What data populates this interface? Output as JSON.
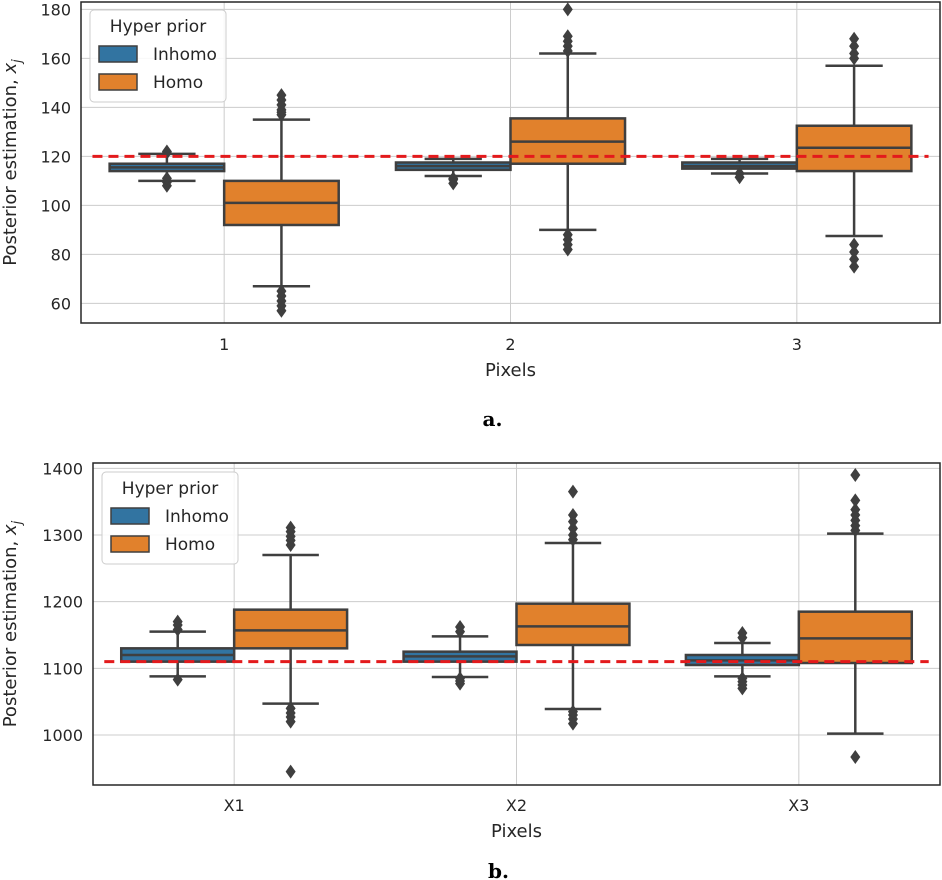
{
  "colors": {
    "inhomo": "#3274a1",
    "homo": "#e1812c",
    "reference": "#e31a1c",
    "grid": "#cccccc",
    "box_edge": "#3f3f3f",
    "axes_edge": "#262626"
  },
  "chart_data": [
    {
      "type": "boxplot",
      "panel_label": "a.",
      "xlabel": "Pixels",
      "ylabel_main": "Posterior estimation, ",
      "ylabel_var": "x",
      "ylabel_sub": "j",
      "ylim": [
        52,
        183
      ],
      "yticks": [
        60,
        80,
        100,
        120,
        140,
        160,
        180
      ],
      "categories": [
        "1",
        "2",
        "3"
      ],
      "reference_line": 120,
      "legend": {
        "title": "Hyper prior",
        "location": "upper-left",
        "entries": [
          "Inhomo",
          "Homo"
        ]
      },
      "series": [
        {
          "name": "Inhomo",
          "boxes": [
            {
              "whisker_low": 110,
              "q1": 114,
              "median": 115.5,
              "q3": 117,
              "whisker_high": 121,
              "outliers": [
                108,
                109.5,
                111,
                121.5,
                122
              ]
            },
            {
              "whisker_low": 112,
              "q1": 114.5,
              "median": 116,
              "q3": 117.5,
              "whisker_high": 119,
              "outliers": [
                109,
                110.5,
                111
              ]
            },
            {
              "whisker_low": 113,
              "q1": 115,
              "median": 116,
              "q3": 117.5,
              "whisker_high": 119,
              "outliers": [
                111.5,
                113
              ]
            }
          ]
        },
        {
          "name": "Homo",
          "boxes": [
            {
              "whisker_low": 67,
              "q1": 92,
              "median": 101,
              "q3": 110,
              "whisker_high": 135,
              "outliers": [
                57,
                59,
                61,
                63,
                65,
                137,
                138,
                139,
                141,
                143,
                145
              ]
            },
            {
              "whisker_low": 90,
              "q1": 117,
              "median": 126,
              "q3": 135.5,
              "whisker_high": 162,
              "outliers": [
                82,
                84,
                86,
                88,
                163,
                165,
                167,
                169,
                180
              ]
            },
            {
              "whisker_low": 87.5,
              "q1": 114,
              "median": 123.5,
              "q3": 132.5,
              "whisker_high": 157,
              "outliers": [
                75,
                78,
                81,
                84,
                160,
                162,
                165,
                168
              ]
            }
          ]
        }
      ]
    },
    {
      "type": "boxplot",
      "panel_label": "b.",
      "xlabel": "Pixels",
      "ylabel_main": "Posterior estimation, ",
      "ylabel_var": "x",
      "ylabel_sub": "j",
      "ylim": [
        925,
        1408
      ],
      "yticks": [
        1000,
        1100,
        1200,
        1300,
        1400
      ],
      "categories": [
        "X1",
        "X2",
        "X3"
      ],
      "reference_line": 1110,
      "legend": {
        "title": "Hyper prior",
        "location": "upper-left",
        "entries": [
          "Inhomo",
          "Homo"
        ]
      },
      "series": [
        {
          "name": "Inhomo",
          "boxes": [
            {
              "whisker_low": 1088,
              "q1": 1110,
              "median": 1120,
              "q3": 1130,
              "whisker_high": 1155,
              "outliers": [
                1083,
                1158,
                1165,
                1170
              ]
            },
            {
              "whisker_low": 1087,
              "q1": 1110,
              "median": 1118,
              "q3": 1125,
              "whisker_high": 1148,
              "outliers": [
                1077,
                1081,
                1085,
                1155,
                1162
              ]
            },
            {
              "whisker_low": 1088,
              "q1": 1105,
              "median": 1112,
              "q3": 1120,
              "whisker_high": 1138,
              "outliers": [
                1070,
                1075,
                1080,
                1085,
                1146,
                1153
              ]
            }
          ]
        },
        {
          "name": "Homo",
          "boxes": [
            {
              "whisker_low": 1047,
              "q1": 1130,
              "median": 1157,
              "q3": 1188,
              "whisker_high": 1270,
              "outliers": [
                945,
                1020,
                1027,
                1033,
                1040,
                1285,
                1292,
                1298,
                1305,
                1311
              ]
            },
            {
              "whisker_low": 1039,
              "q1": 1135,
              "median": 1163,
              "q3": 1197,
              "whisker_high": 1288,
              "outliers": [
                1017,
                1024,
                1030,
                1035,
                1293,
                1300,
                1310,
                1320,
                1330,
                1365
              ]
            },
            {
              "whisker_low": 1002,
              "q1": 1108,
              "median": 1145,
              "q3": 1185,
              "whisker_high": 1302,
              "outliers": [
                967,
                1307,
                1314,
                1322,
                1330,
                1338,
                1352,
                1390
              ]
            }
          ]
        }
      ]
    }
  ]
}
